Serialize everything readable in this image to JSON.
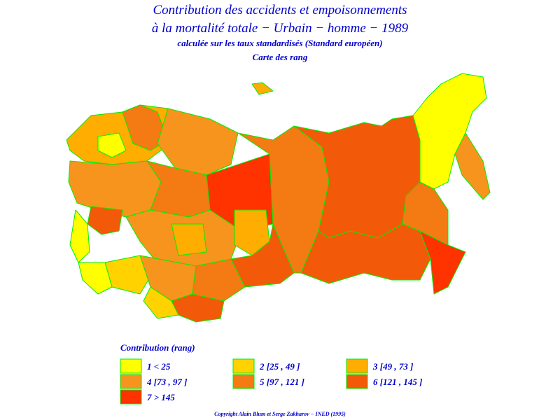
{
  "header": {
    "title_line1": "Contribution des accidents et empoisonnements",
    "title_line2": "à la mortalité totale − Urbain − homme − 1989",
    "subtitle": "calculée sur les taux standardisés (Standard européen)",
    "map_kind": "Carte des rang"
  },
  "legend": {
    "title": "Contribution (rang)",
    "items": [
      {
        "label": "1  <  25",
        "color": "#ffff00"
      },
      {
        "label": "2  [25 ,  49 ]",
        "color": "#ffd200"
      },
      {
        "label": "3  [49 ,  73 ]",
        "color": "#ffad00"
      },
      {
        "label": "4  [73 ,  97 ]",
        "color": "#f7941d"
      },
      {
        "label": "5  [97 ,  121 ]",
        "color": "#f47a14"
      },
      {
        "label": "6  [121 ,  145 ]",
        "color": "#f25a0a"
      },
      {
        "label": "7  >  145",
        "color": "#ff3300"
      }
    ]
  },
  "footer": {
    "copyright": "Copyright Alain Blum et Serge Zakharov − INED (1995)"
  }
}
